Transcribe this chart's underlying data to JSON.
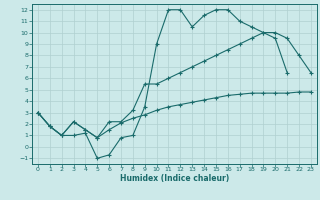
{
  "xlabel": "Humidex (Indice chaleur)",
  "background_color": "#cce9e9",
  "grid_color": "#b0d0d0",
  "line_color": "#1a6b6b",
  "xlim": [
    -0.5,
    23.5
  ],
  "ylim": [
    -1.5,
    12.5
  ],
  "xticks": [
    0,
    1,
    2,
    3,
    4,
    5,
    6,
    7,
    8,
    9,
    10,
    11,
    12,
    13,
    14,
    15,
    16,
    17,
    18,
    19,
    20,
    21,
    22,
    23
  ],
  "yticks": [
    -1,
    0,
    1,
    2,
    3,
    4,
    5,
    6,
    7,
    8,
    9,
    10,
    11,
    12
  ],
  "line1_x": [
    0,
    1,
    2,
    3,
    4,
    5,
    6,
    7,
    8,
    9,
    10,
    11,
    12,
    13,
    14,
    15,
    16,
    17,
    18,
    19,
    20,
    21
  ],
  "line1_y": [
    3.0,
    1.8,
    1.0,
    1.0,
    1.2,
    -1.0,
    -0.7,
    0.8,
    1.0,
    3.5,
    9.0,
    12.0,
    12.0,
    10.5,
    11.5,
    12.0,
    12.0,
    11.0,
    10.5,
    10.0,
    9.5,
    6.5
  ],
  "line2_x": [
    0,
    1,
    2,
    3,
    4,
    5,
    6,
    7,
    8,
    9,
    10,
    11,
    12,
    13,
    14,
    15,
    16,
    17,
    18,
    19,
    20,
    21,
    22,
    23
  ],
  "line2_y": [
    3.0,
    1.8,
    1.0,
    2.2,
    1.5,
    0.8,
    2.2,
    2.2,
    3.2,
    5.5,
    5.5,
    6.0,
    6.5,
    7.0,
    7.5,
    8.0,
    8.5,
    9.0,
    9.5,
    10.0,
    10.0,
    9.5,
    8.0,
    6.5
  ],
  "line3_x": [
    0,
    1,
    2,
    3,
    4,
    5,
    6,
    7,
    8,
    9,
    10,
    11,
    12,
    13,
    14,
    15,
    16,
    17,
    18,
    19,
    20,
    21,
    22,
    23
  ],
  "line3_y": [
    3.0,
    1.8,
    1.0,
    2.2,
    1.5,
    0.8,
    1.5,
    2.1,
    2.5,
    2.8,
    3.2,
    3.5,
    3.7,
    3.9,
    4.1,
    4.3,
    4.5,
    4.6,
    4.7,
    4.7,
    4.7,
    4.7,
    4.8,
    4.8
  ]
}
